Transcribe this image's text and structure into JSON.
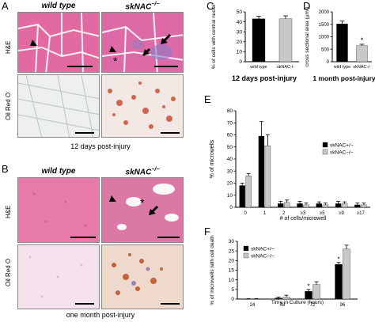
{
  "panelA": {
    "letter": "A",
    "col1": "wild type",
    "col2": "skNAC",
    "col2_sup": "−/−",
    "row1": "H&E",
    "row2": "Oil Red O",
    "caption": "12 days post-injury"
  },
  "panelB": {
    "letter": "B",
    "col1": "wild type",
    "col2": "skNAC",
    "col2_sup": "−/−",
    "row1": "H&E",
    "row2": "Oil Red O",
    "caption": "one month post-injury"
  },
  "chart_data": [
    {
      "panel": "C",
      "type": "bar",
      "categories": [
        "wild type",
        "skNAC-/-"
      ],
      "values": [
        43,
        43
      ],
      "errors": [
        2.5,
        3
      ],
      "colors": [
        "#000000",
        "#c8c8c8"
      ],
      "ylabel": "% of cells with central nuclei",
      "xlabel": "12 days post-injury",
      "ylim": [
        0,
        50
      ],
      "yticks": [
        "0",
        "10",
        "20",
        "30",
        "40",
        "50"
      ]
    },
    {
      "panel": "D",
      "type": "bar",
      "categories": [
        "wild type",
        "skNAC-/-"
      ],
      "values": [
        1520,
        640
      ],
      "errors": [
        110,
        60
      ],
      "colors": [
        "#000000",
        "#c8c8c8"
      ],
      "annotations": [
        "",
        "*"
      ],
      "ylabel": "cross sectional area (µm²)",
      "xlabel": "1 month post-injury",
      "ylim": [
        0,
        2000
      ],
      "yticks": [
        "0",
        "500",
        "1000",
        "1500",
        "2000"
      ]
    },
    {
      "panel": "E",
      "type": "bar",
      "categories": [
        "0",
        "1",
        "2",
        "≥3",
        "≥5",
        "≥9",
        "≥17"
      ],
      "series": [
        {
          "name": "skNAC+/−",
          "values": [
            18,
            59,
            3,
            3,
            3,
            3,
            2
          ],
          "errors": [
            2,
            12,
            2,
            2,
            1.5,
            2,
            1.5
          ],
          "color": "#000000"
        },
        {
          "name": "skNAC−/−",
          "values": [
            26,
            51,
            4,
            2,
            2,
            3,
            2
          ],
          "errors": [
            2,
            9,
            2,
            1.5,
            1.5,
            1.5,
            1.5
          ],
          "color": "#c8c8c8"
        }
      ],
      "ylabel": "% of microwells",
      "xlabel": "# of cells/microwell",
      "ylim": [
        0,
        80
      ],
      "yticks": [
        "0",
        "10",
        "20",
        "30",
        "40",
        "50",
        "60",
        "70",
        "80"
      ],
      "legend": "top-right"
    },
    {
      "panel": "F",
      "type": "bar",
      "categories": [
        "24",
        "48",
        "72",
        "96"
      ],
      "series": [
        {
          "name": "skNAC+/−",
          "values": [
            0,
            0.5,
            4,
            18
          ],
          "errors": [
            0.2,
            0.5,
            1,
            1
          ],
          "color": "#000000",
          "annotations": [
            "",
            "",
            "*",
            "*"
          ]
        },
        {
          "name": "skNAC−/−",
          "values": [
            0,
            1,
            7.5,
            26
          ],
          "errors": [
            0.2,
            1,
            1.5,
            2
          ],
          "color": "#c8c8c8"
        }
      ],
      "ylabel": "% of microwells with cell death",
      "xlabel": "Time in Culture (hours)",
      "ylim": [
        0,
        30
      ],
      "yticks": [
        "0",
        "5",
        "10",
        "15",
        "20",
        "25",
        "30"
      ],
      "legend": "top-left"
    }
  ]
}
